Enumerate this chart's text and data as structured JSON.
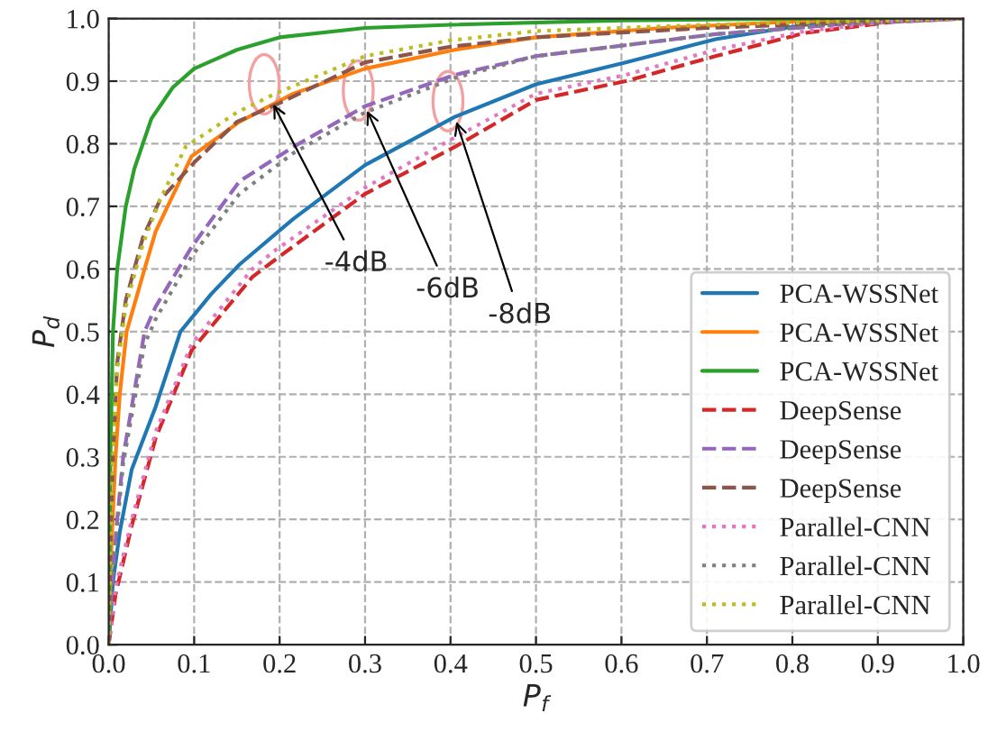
{
  "chart_data": {
    "type": "line",
    "xlabel": "P$_{f}$",
    "ylabel": "P$_{d}$",
    "xlim": [
      0,
      1
    ],
    "ylim": [
      0,
      1
    ],
    "xticks": [
      {
        "value": 0,
        "label": "0.0"
      },
      {
        "value": 0.1,
        "label": "0.1"
      },
      {
        "value": 0.2,
        "label": "0.2"
      },
      {
        "value": 0.3,
        "label": "0.3"
      },
      {
        "value": 0.4,
        "label": "0.4"
      },
      {
        "value": 0.5,
        "label": "0.5"
      },
      {
        "value": 0.6,
        "label": "0.6"
      },
      {
        "value": 0.7,
        "label": "0.7"
      },
      {
        "value": 0.8,
        "label": "0.8"
      },
      {
        "value": 0.9,
        "label": "0.9"
      },
      {
        "value": 1,
        "label": "1.0"
      }
    ],
    "yticks": [
      {
        "value": 0,
        "label": "0.0"
      },
      {
        "value": 0.1,
        "label": "0.1"
      },
      {
        "value": 0.2,
        "label": "0.2"
      },
      {
        "value": 0.3,
        "label": "0.3"
      },
      {
        "value": 0.4,
        "label": "0.4"
      },
      {
        "value": 0.5,
        "label": "0.5"
      },
      {
        "value": 0.6,
        "label": "0.6"
      },
      {
        "value": 0.7,
        "label": "0.7"
      },
      {
        "value": 0.8,
        "label": "0.8"
      },
      {
        "value": 0.9,
        "label": "0.9"
      },
      {
        "value": 1,
        "label": "1.0"
      }
    ],
    "grid": true,
    "legend": "bottom right",
    "marker": "none",
    "series": [
      {
        "name": "PCA-WSSNet",
        "color": "#1f77b4",
        "line_style": "solid",
        "x": [
          0,
          0.005,
          0.013,
          0.027,
          0.055,
          0.084,
          0.12,
          0.153,
          0.216,
          0.3,
          0.405,
          0.5,
          0.605,
          0.71,
          0.815,
          0.9,
          1
        ],
        "values": [
          0,
          0.1,
          0.18,
          0.28,
          0.38,
          0.5,
          0.56,
          0.607,
          0.68,
          0.766,
          0.843,
          0.895,
          0.93,
          0.967,
          0.99,
          0.997,
          1
        ]
      },
      {
        "name": "PCA-WSSNet",
        "color": "#ff7f0e",
        "line_style": "solid",
        "x": [
          0,
          0.003,
          0.008,
          0.013,
          0.021,
          0.042,
          0.055,
          0.097,
          0.153,
          0.216,
          0.3,
          0.405,
          0.5,
          0.65,
          0.8,
          1
        ],
        "values": [
          0,
          0.15,
          0.3,
          0.4,
          0.5,
          0.6,
          0.66,
          0.78,
          0.835,
          0.88,
          0.92,
          0.95,
          0.97,
          0.985,
          0.995,
          1
        ]
      },
      {
        "name": "PCA-WSSNet",
        "color": "#2ca02c",
        "line_style": "solid",
        "x": [
          0,
          0.002,
          0.005,
          0.01,
          0.02,
          0.03,
          0.05,
          0.075,
          0.1,
          0.15,
          0.2,
          0.3,
          0.4,
          0.6,
          0.8,
          1
        ],
        "values": [
          0,
          0.3,
          0.5,
          0.6,
          0.7,
          0.76,
          0.84,
          0.89,
          0.92,
          0.95,
          0.97,
          0.985,
          0.99,
          0.997,
          1,
          1
        ]
      },
      {
        "name": "DeepSense",
        "color": "#d62728",
        "line_style": "dashed",
        "x": [
          0,
          0.008,
          0.027,
          0.055,
          0.097,
          0.168,
          0.195,
          0.3,
          0.405,
          0.5,
          0.605,
          0.71,
          0.815,
          0.92,
          1
        ],
        "values": [
          0,
          0.08,
          0.19,
          0.33,
          0.47,
          0.587,
          0.615,
          0.72,
          0.795,
          0.87,
          0.9,
          0.94,
          0.977,
          0.995,
          1
        ]
      },
      {
        "name": "DeepSense",
        "color": "#9467bd",
        "line_style": "dashed",
        "x": [
          0,
          0.004,
          0.01,
          0.017,
          0.042,
          0.055,
          0.097,
          0.153,
          0.216,
          0.3,
          0.405,
          0.5,
          0.71,
          0.85,
          1
        ],
        "values": [
          0,
          0.1,
          0.2,
          0.3,
          0.5,
          0.54,
          0.635,
          0.74,
          0.795,
          0.86,
          0.91,
          0.94,
          0.975,
          0.99,
          1
        ]
      },
      {
        "name": "DeepSense",
        "color": "#8c564b",
        "line_style": "dashed",
        "x": [
          0,
          0.002,
          0.005,
          0.01,
          0.02,
          0.04,
          0.06,
          0.1,
          0.15,
          0.2,
          0.3,
          0.4,
          0.5,
          0.7,
          1
        ],
        "values": [
          0,
          0.15,
          0.3,
          0.45,
          0.55,
          0.65,
          0.71,
          0.77,
          0.835,
          0.865,
          0.93,
          0.955,
          0.97,
          0.985,
          1
        ]
      },
      {
        "name": "Parallel-CNN",
        "color": "#e377c2",
        "line_style": "dotted",
        "x": [
          0,
          0.008,
          0.027,
          0.055,
          0.097,
          0.168,
          0.195,
          0.3,
          0.405,
          0.5,
          0.605,
          0.71,
          0.815,
          0.92,
          1
        ],
        "values": [
          0,
          0.09,
          0.2,
          0.34,
          0.48,
          0.6,
          0.63,
          0.73,
          0.81,
          0.88,
          0.91,
          0.95,
          0.98,
          0.996,
          1
        ]
      },
      {
        "name": "Parallel-CNN",
        "color": "#7f7f7f",
        "line_style": "dotted",
        "x": [
          0,
          0.004,
          0.01,
          0.017,
          0.042,
          0.055,
          0.097,
          0.153,
          0.216,
          0.3,
          0.405,
          0.5,
          0.71,
          0.85,
          1
        ],
        "values": [
          0,
          0.1,
          0.19,
          0.29,
          0.48,
          0.52,
          0.62,
          0.72,
          0.785,
          0.85,
          0.905,
          0.94,
          0.975,
          0.99,
          1
        ]
      },
      {
        "name": "Parallel-CNN",
        "color": "#bcbd22",
        "line_style": "dotted",
        "x": [
          0,
          0.002,
          0.005,
          0.01,
          0.02,
          0.04,
          0.06,
          0.09,
          0.15,
          0.195,
          0.3,
          0.4,
          0.5,
          0.7,
          1
        ],
        "values": [
          0,
          0.15,
          0.3,
          0.44,
          0.54,
          0.64,
          0.71,
          0.795,
          0.85,
          0.88,
          0.94,
          0.965,
          0.98,
          0.99,
          1
        ]
      }
    ],
    "annotations": [
      {
        "text": "-4dB",
        "x": 0.19,
        "y": 0.87
      },
      {
        "text": "-6dB",
        "x": 0.3,
        "y": 0.86
      },
      {
        "text": "-8dB",
        "x": 0.405,
        "y": 0.843
      }
    ]
  }
}
